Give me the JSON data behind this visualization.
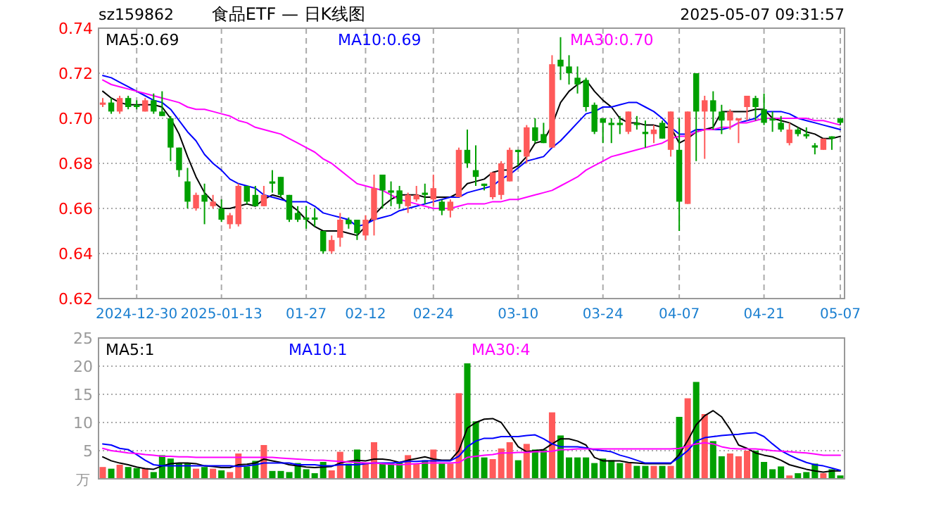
{
  "chart_data": [
    {
      "type": "candlestick",
      "title": "食品ETF — 日K线图",
      "subtitle": "sz159862",
      "annotations": [
        "2025-05-07 09:31:57"
      ],
      "categories": [
        null,
        null,
        null,
        null,
        "2024-12-30",
        null,
        null,
        null,
        null,
        null,
        null,
        null,
        null,
        null,
        "2025-01-13",
        null,
        null,
        null,
        null,
        null,
        null,
        null,
        null,
        null,
        "01-27",
        null,
        null,
        null,
        null,
        null,
        null,
        "02-12",
        null,
        null,
        null,
        null,
        null,
        null,
        null,
        "02-24",
        null,
        null,
        null,
        null,
        null,
        null,
        null,
        null,
        null,
        "03-10",
        null,
        null,
        null,
        null,
        null,
        null,
        null,
        null,
        null,
        "03-24",
        null,
        null,
        null,
        null,
        null,
        null,
        null,
        null,
        "04-07",
        null,
        null,
        null,
        null,
        null,
        null,
        null,
        null,
        null,
        "04-21",
        null,
        null,
        null,
        null,
        null,
        null,
        null,
        null,
        "05-07"
      ],
      "ohlc": [
        [
          0.706,
          0.709,
          0.705,
          0.707
        ],
        [
          0.707,
          0.709,
          0.702,
          0.703
        ],
        [
          0.703,
          0.71,
          0.702,
          0.709
        ],
        [
          0.709,
          0.71,
          0.704,
          0.705
        ],
        [
          0.706,
          0.708,
          0.704,
          0.705
        ],
        [
          0.703,
          0.709,
          0.703,
          0.708
        ],
        [
          0.708,
          0.711,
          0.702,
          0.703
        ],
        [
          0.703,
          0.712,
          0.701,
          0.701
        ],
        [
          0.7,
          0.701,
          0.681,
          0.687
        ],
        [
          0.687,
          0.687,
          0.674,
          0.677
        ],
        [
          0.672,
          0.678,
          0.66,
          0.663
        ],
        [
          0.66,
          0.667,
          0.659,
          0.666
        ],
        [
          0.666,
          0.671,
          0.653,
          0.663
        ],
        [
          0.661,
          0.666,
          0.66,
          0.663
        ],
        [
          0.66,
          0.664,
          0.654,
          0.655
        ],
        [
          0.653,
          0.658,
          0.651,
          0.657
        ],
        [
          0.653,
          0.671,
          0.652,
          0.67
        ],
        [
          0.67,
          0.67,
          0.662,
          0.663
        ],
        [
          0.666,
          0.67,
          0.661,
          0.661
        ],
        [
          0.661,
          0.67,
          0.661,
          0.666
        ],
        [
          0.672,
          0.677,
          0.667,
          0.671
        ],
        [
          0.674,
          0.674,
          0.665,
          0.666
        ],
        [
          0.666,
          0.666,
          0.654,
          0.655
        ],
        [
          0.658,
          0.661,
          0.654,
          0.655
        ],
        [
          0.656,
          0.661,
          0.651,
          0.655
        ],
        [
          0.656,
          0.66,
          0.652,
          0.655
        ],
        [
          0.65,
          0.65,
          0.64,
          0.641
        ],
        [
          0.641,
          0.648,
          0.64,
          0.646
        ],
        [
          0.647,
          0.658,
          0.643,
          0.655
        ],
        [
          0.655,
          0.656,
          0.651,
          0.653
        ],
        [
          0.655,
          0.655,
          0.646,
          0.649
        ],
        [
          0.648,
          0.657,
          0.646,
          0.655
        ],
        [
          0.655,
          0.675,
          0.648,
          0.669
        ],
        [
          0.675,
          0.675,
          0.66,
          0.668
        ],
        [
          0.668,
          0.672,
          0.661,
          0.667
        ],
        [
          0.668,
          0.67,
          0.66,
          0.662
        ],
        [
          0.661,
          0.667,
          0.658,
          0.666
        ],
        [
          0.664,
          0.67,
          0.663,
          0.666
        ],
        [
          0.667,
          0.671,
          0.662,
          0.666
        ],
        [
          0.664,
          0.675,
          0.661,
          0.669
        ],
        [
          0.663,
          0.664,
          0.657,
          0.659
        ],
        [
          0.659,
          0.664,
          0.656,
          0.663
        ],
        [
          0.665,
          0.687,
          0.665,
          0.686
        ],
        [
          0.686,
          0.695,
          0.678,
          0.68
        ],
        [
          0.677,
          0.688,
          0.67,
          0.674
        ],
        [
          0.671,
          0.671,
          0.668,
          0.67
        ],
        [
          0.665,
          0.676,
          0.664,
          0.676
        ],
        [
          0.666,
          0.681,
          0.664,
          0.68
        ],
        [
          0.672,
          0.687,
          0.672,
          0.686
        ],
        [
          0.686,
          0.686,
          0.679,
          0.685
        ],
        [
          0.683,
          0.697,
          0.68,
          0.696
        ],
        [
          0.696,
          0.7,
          0.689,
          0.69
        ],
        [
          0.693,
          0.698,
          0.689,
          0.689
        ],
        [
          0.687,
          0.728,
          0.687,
          0.724
        ],
        [
          0.726,
          0.736,
          0.717,
          0.723
        ],
        [
          0.723,
          0.728,
          0.715,
          0.72
        ],
        [
          0.718,
          0.723,
          0.711,
          0.715
        ],
        [
          0.717,
          0.718,
          0.703,
          0.705
        ],
        [
          0.706,
          0.707,
          0.693,
          0.694
        ],
        [
          0.7,
          0.7,
          0.689,
          0.698
        ],
        [
          0.698,
          0.7,
          0.689,
          0.697
        ],
        [
          0.698,
          0.701,
          0.693,
          0.697
        ],
        [
          0.694,
          0.703,
          0.693,
          0.703
        ],
        [
          0.698,
          0.701,
          0.695,
          0.697
        ],
        [
          0.694,
          0.699,
          0.687,
          0.693
        ],
        [
          0.693,
          0.697,
          0.689,
          0.695
        ],
        [
          0.698,
          0.699,
          0.691,
          0.691
        ],
        [
          0.686,
          0.703,
          0.683,
          0.703
        ],
        [
          0.686,
          0.7,
          0.65,
          0.663
        ],
        [
          0.662,
          0.703,
          0.662,
          0.703
        ],
        [
          0.72,
          0.72,
          0.681,
          0.703
        ],
        [
          0.703,
          0.71,
          0.682,
          0.708
        ],
        [
          0.708,
          0.712,
          0.695,
          0.703
        ],
        [
          0.703,
          0.706,
          0.693,
          0.699
        ],
        [
          0.699,
          0.704,
          0.695,
          0.703
        ],
        [
          0.699,
          0.7,
          0.689,
          0.7
        ],
        [
          0.705,
          0.71,
          0.699,
          0.71
        ],
        [
          0.709,
          0.71,
          0.699,
          0.705
        ],
        [
          0.704,
          0.711,
          0.697,
          0.698
        ],
        [
          0.7,
          0.703,
          0.694,
          0.699
        ],
        [
          0.698,
          0.701,
          0.694,
          0.695
        ],
        [
          0.689,
          0.698,
          0.688,
          0.695
        ],
        [
          0.695,
          0.696,
          0.692,
          0.693
        ],
        [
          0.693,
          0.696,
          0.691,
          0.692
        ],
        [
          0.688,
          0.689,
          0.684,
          0.687
        ],
        [
          0.686,
          0.691,
          0.686,
          0.691
        ],
        [
          0.692,
          0.692,
          0.686,
          0.691
        ],
        [
          0.7,
          0.7,
          0.697,
          0.698
        ]
      ],
      "colors": [
        "#ff5a5a",
        "#00a000",
        "#ff5a5a",
        "#00a000",
        "#00a000",
        "#ff5a5a",
        "#00a000",
        "#00a000",
        "#00a000",
        "#00a000",
        "#00a000",
        "#ff5a5a",
        "#00a000",
        "#ff5a5a",
        "#00a000",
        "#ff5a5a",
        "#ff5a5a",
        "#00a000",
        "#00a000",
        "#ff5a5a",
        "#00a000",
        "#00a000",
        "#00a000",
        "#00a000",
        "#00a000",
        "#00a000",
        "#00a000",
        "#ff5a5a",
        "#ff5a5a",
        "#00a000",
        "#00a000",
        "#ff5a5a",
        "#ff5a5a",
        "#00a000",
        "#00a000",
        "#00a000",
        "#ff5a5a",
        "#ff5a5a",
        "#00a000",
        "#ff5a5a",
        "#00a000",
        "#ff5a5a",
        "#ff5a5a",
        "#00a000",
        "#00a000",
        "#00a000",
        "#ff5a5a",
        "#ff5a5a",
        "#ff5a5a",
        "#00a000",
        "#ff5a5a",
        "#00a000",
        "#00a000",
        "#ff5a5a",
        "#00a000",
        "#00a000",
        "#00a000",
        "#00a000",
        "#00a000",
        "#00a000",
        "#00a000",
        "#00a000",
        "#ff5a5a",
        "#00a000",
        "#00a000",
        "#ff5a5a",
        "#00a000",
        "#ff5a5a",
        "#00a000",
        "#ff5a5a",
        "#00a000",
        "#ff5a5a",
        "#00a000",
        "#00a000",
        "#ff5a5a",
        "#ff5a5a",
        "#ff5a5a",
        "#00a000",
        "#00a000",
        "#00a000",
        "#00a000",
        "#ff5a5a",
        "#00a000",
        "#00a000",
        "#00a000",
        "#ff5a5a",
        "#00a000",
        "#00a000"
      ],
      "series": [
        {
          "type": "line",
          "name": "MA5:0.69",
          "color": "#000000",
          "values": [
            0.712,
            0.709,
            0.707,
            0.706,
            0.706,
            0.706,
            0.706,
            0.705,
            0.7,
            0.693,
            0.683,
            0.674,
            0.667,
            0.663,
            0.66,
            0.66,
            0.661,
            0.662,
            0.661,
            0.664,
            0.666,
            0.665,
            0.662,
            0.659,
            0.655,
            0.652,
            0.65,
            0.65,
            0.65,
            0.649,
            0.648,
            0.652,
            0.657,
            0.661,
            0.664,
            0.666,
            0.666,
            0.666,
            0.665,
            0.665,
            0.665,
            0.665,
            0.667,
            0.671,
            0.672,
            0.673,
            0.676,
            0.677,
            0.677,
            0.679,
            0.683,
            0.689,
            0.69,
            0.697,
            0.707,
            0.712,
            0.715,
            0.717,
            0.712,
            0.708,
            0.705,
            0.7,
            0.698,
            0.698,
            0.697,
            0.697,
            0.696,
            0.696,
            0.689,
            0.691,
            0.694,
            0.695,
            0.696,
            0.703,
            0.703,
            0.703,
            0.703,
            0.704,
            0.704,
            0.7,
            0.699,
            0.698,
            0.696,
            0.694,
            0.693,
            0.691,
            0.691,
            0.692
          ]
        },
        {
          "type": "line",
          "name": "MA10:0.69",
          "color": "#0000ff",
          "values": [
            0.719,
            0.718,
            0.716,
            0.714,
            0.712,
            0.71,
            0.708,
            0.707,
            0.704,
            0.699,
            0.694,
            0.69,
            0.684,
            0.68,
            0.677,
            0.673,
            0.671,
            0.67,
            0.669,
            0.666,
            0.665,
            0.664,
            0.663,
            0.663,
            0.663,
            0.661,
            0.658,
            0.657,
            0.656,
            0.655,
            0.652,
            0.653,
            0.655,
            0.656,
            0.657,
            0.659,
            0.66,
            0.661,
            0.662,
            0.663,
            0.664,
            0.665,
            0.665,
            0.667,
            0.668,
            0.669,
            0.67,
            0.673,
            0.675,
            0.678,
            0.681,
            0.682,
            0.683,
            0.687,
            0.69,
            0.694,
            0.698,
            0.702,
            0.703,
            0.705,
            0.705,
            0.706,
            0.707,
            0.707,
            0.705,
            0.703,
            0.7,
            0.696,
            0.693,
            0.693,
            0.695,
            0.695,
            0.695,
            0.695,
            0.696,
            0.698,
            0.699,
            0.7,
            0.703,
            0.703,
            0.703,
            0.702,
            0.7,
            0.699,
            0.698,
            0.697,
            0.696,
            0.695
          ]
        },
        {
          "type": "line",
          "name": "MA30:0.70",
          "color": "#ff00ff",
          "values": [
            0.717,
            0.715,
            0.714,
            0.713,
            0.712,
            0.711,
            0.71,
            0.709,
            0.708,
            0.707,
            0.705,
            0.704,
            0.704,
            0.703,
            0.702,
            0.701,
            0.699,
            0.698,
            0.696,
            0.695,
            0.694,
            0.693,
            0.691,
            0.689,
            0.687,
            0.685,
            0.682,
            0.68,
            0.677,
            0.674,
            0.671,
            0.67,
            0.669,
            0.668,
            0.666,
            0.664,
            0.663,
            0.662,
            0.661,
            0.66,
            0.66,
            0.66,
            0.661,
            0.662,
            0.662,
            0.662,
            0.663,
            0.663,
            0.664,
            0.664,
            0.665,
            0.666,
            0.667,
            0.668,
            0.67,
            0.672,
            0.674,
            0.677,
            0.679,
            0.681,
            0.683,
            0.684,
            0.685,
            0.686,
            0.687,
            0.688,
            0.689,
            0.691,
            0.692,
            0.692,
            0.694,
            0.695,
            0.695,
            0.696,
            0.696,
            0.698,
            0.698,
            0.699,
            0.7,
            0.7,
            0.7,
            0.7,
            0.7,
            0.7,
            0.699,
            0.699,
            0.698,
            0.697
          ]
        }
      ],
      "ylim": [
        0.62,
        0.74
      ],
      "yticks": [
        0.62,
        0.64,
        0.66,
        0.68,
        {
          "value": 0.7,
          "label": "0.70"
        },
        0.72,
        0.74
      ],
      "grid": true,
      "legend": "top"
    },
    {
      "type": "bar",
      "ylabel": "万",
      "categories": [
        null,
        null,
        null,
        null,
        null,
        null,
        null,
        null,
        null,
        null,
        null,
        null,
        null,
        null,
        null,
        null,
        null,
        null,
        null,
        null,
        null,
        null,
        null,
        null,
        null,
        null,
        null,
        null,
        null,
        null,
        null,
        null,
        null,
        null,
        null,
        null,
        null,
        null,
        null,
        null,
        null,
        null,
        null,
        null,
        null,
        null,
        null,
        null,
        null,
        null,
        null,
        null,
        null,
        null,
        null,
        null,
        null,
        null,
        null,
        null,
        null,
        null,
        null,
        null,
        null,
        null,
        null,
        null,
        null,
        null,
        null,
        null,
        null,
        null,
        null,
        null,
        null,
        null,
        null,
        null,
        null,
        null,
        null,
        null,
        null,
        null,
        null,
        null
      ],
      "series": [
        {
          "type": "bar",
          "colors": [
            "#ff5a5a",
            "#00a000",
            "#ff5a5a",
            "#00a000",
            "#00a000",
            "#ff5a5a",
            "#00a000",
            "#00a000",
            "#00a000",
            "#00a000",
            "#00a000",
            "#ff5a5a",
            "#00a000",
            "#ff5a5a",
            "#00a000",
            "#ff5a5a",
            "#ff5a5a",
            "#00a000",
            "#00a000",
            "#ff5a5a",
            "#00a000",
            "#00a000",
            "#00a000",
            "#00a000",
            "#00a000",
            "#00a000",
            "#00a000",
            "#ff5a5a",
            "#ff5a5a",
            "#00a000",
            "#00a000",
            "#ff5a5a",
            "#ff5a5a",
            "#00a000",
            "#00a000",
            "#00a000",
            "#ff5a5a",
            "#ff5a5a",
            "#00a000",
            "#ff5a5a",
            "#00a000",
            "#ff5a5a",
            "#ff5a5a",
            "#00a000",
            "#00a000",
            "#00a000",
            "#ff5a5a",
            "#ff5a5a",
            "#ff5a5a",
            "#00a000",
            "#ff5a5a",
            "#00a000",
            "#00a000",
            "#ff5a5a",
            "#00a000",
            "#00a000",
            "#00a000",
            "#00a000",
            "#00a000",
            "#00a000",
            "#00a000",
            "#00a000",
            "#ff5a5a",
            "#00a000",
            "#00a000",
            "#ff5a5a",
            "#00a000",
            "#ff5a5a",
            "#00a000",
            "#ff5a5a",
            "#00a000",
            "#ff5a5a",
            "#00a000",
            "#00a000",
            "#ff5a5a",
            "#ff5a5a",
            "#ff5a5a",
            "#00a000",
            "#00a000",
            "#00a000",
            "#00a000",
            "#ff5a5a",
            "#00a000",
            "#00a000",
            "#00a000",
            "#ff5a5a",
            "#00a000",
            "#00a000"
          ],
          "values": [
            2.1,
            1.8,
            2.5,
            2.1,
            1.9,
            1.9,
            1.2,
            4.2,
            3.6,
            2.8,
            2.8,
            1.8,
            2.1,
            1.8,
            1.5,
            1.2,
            4.5,
            2.2,
            3.2,
            6.0,
            1.4,
            1.4,
            1.2,
            2.8,
            1.7,
            1.0,
            3.0,
            1.5,
            4.8,
            2.7,
            5.2,
            2.7,
            6.5,
            2.7,
            2.7,
            3.0,
            4.2,
            2.7,
            3.3,
            5.2,
            2.7,
            2.7,
            15.2,
            20.5,
            10.2,
            3.8,
            3.5,
            5.4,
            6.5,
            3.3,
            6.2,
            5.2,
            5.2,
            11.8,
            7.7,
            3.8,
            3.8,
            3.8,
            2.8,
            3.6,
            3.3,
            2.8,
            2.8,
            2.3,
            2.3,
            2.3,
            2.3,
            2.3,
            11.0,
            14.3,
            17.2,
            11.5,
            6.7,
            4.0,
            4.5,
            4.0,
            5.0,
            5.0,
            3.0,
            1.7,
            2.2,
            0.6,
            1.0,
            1.2,
            2.7,
            1.0,
            1.7,
            0.6
          ]
        },
        {
          "type": "line",
          "name": "MA5:1",
          "color": "#000000",
          "values": [
            3.9,
            3.2,
            2.8,
            2.5,
            2.1,
            1.8,
            1.7,
            2.3,
            2.7,
            2.8,
            2.8,
            2.7,
            2.3,
            2.2,
            2.0,
            2.0,
            2.5,
            2.6,
            2.8,
            3.5,
            3.2,
            2.9,
            2.5,
            2.3,
            2.1,
            2.0,
            2.1,
            2.2,
            2.8,
            3.1,
            3.3,
            3.2,
            3.5,
            3.5,
            3.3,
            2.9,
            3.3,
            3.6,
            3.9,
            3.5,
            3.3,
            3.3,
            5.0,
            9.0,
            10.0,
            10.6,
            10.7,
            10.0,
            7.9,
            5.7,
            4.8,
            5.0,
            5.2,
            6.2,
            7.1,
            7.1,
            6.7,
            6.0,
            3.8,
            3.2,
            3.2,
            3.2,
            2.9,
            2.8,
            2.7,
            2.7,
            2.7,
            2.7,
            4.3,
            6.8,
            9.6,
            11.2,
            12.1,
            11.0,
            8.8,
            6.0,
            5.4,
            4.6,
            4.2,
            3.9,
            3.3,
            2.5,
            2.1,
            1.7,
            1.4,
            1.2,
            1.4,
            1.4
          ]
        },
        {
          "type": "line",
          "name": "MA10:1",
          "color": "#0000ff",
          "values": [
            6.2,
            6.0,
            5.4,
            5.2,
            4.3,
            3.3,
            2.5,
            2.3,
            2.3,
            2.3,
            2.3,
            2.3,
            2.3,
            2.3,
            2.3,
            2.3,
            2.2,
            2.3,
            2.5,
            2.8,
            2.8,
            2.8,
            2.8,
            2.5,
            2.5,
            2.5,
            2.3,
            2.3,
            2.5,
            2.5,
            2.5,
            2.7,
            2.8,
            2.8,
            2.8,
            2.9,
            3.1,
            3.1,
            3.2,
            3.2,
            3.2,
            3.2,
            4.0,
            5.7,
            6.7,
            7.2,
            7.2,
            7.5,
            7.5,
            7.5,
            7.7,
            7.8,
            7.1,
            6.2,
            5.7,
            5.7,
            5.7,
            5.5,
            5.2,
            5.0,
            4.8,
            4.2,
            3.8,
            3.3,
            2.8,
            2.8,
            2.8,
            2.8,
            3.8,
            5.0,
            6.7,
            7.3,
            7.5,
            7.7,
            7.8,
            7.9,
            8.1,
            8.2,
            7.5,
            6.2,
            5.0,
            4.2,
            3.5,
            2.9,
            2.5,
            2.3,
            1.9,
            1.5
          ]
        },
        {
          "type": "line",
          "name": "MA30:4",
          "color": "#ff00ff",
          "values": [
            5.4,
            5.0,
            4.8,
            4.6,
            4.5,
            4.3,
            4.2,
            4.0,
            4.0,
            3.9,
            3.9,
            3.8,
            3.8,
            3.8,
            3.8,
            3.8,
            3.8,
            3.8,
            3.8,
            3.8,
            3.8,
            3.7,
            3.6,
            3.5,
            3.4,
            3.3,
            3.3,
            3.2,
            3.1,
            3.0,
            2.9,
            2.8,
            2.8,
            2.7,
            2.6,
            2.5,
            2.6,
            2.7,
            2.8,
            2.8,
            2.8,
            2.8,
            2.9,
            3.8,
            4.0,
            4.2,
            4.3,
            4.6,
            4.6,
            4.7,
            4.7,
            4.8,
            4.8,
            4.9,
            5.2,
            5.2,
            5.3,
            5.3,
            5.3,
            5.3,
            5.3,
            5.3,
            5.3,
            5.3,
            5.3,
            5.3,
            5.3,
            5.3,
            5.4,
            5.8,
            6.2,
            6.4,
            6.2,
            5.7,
            5.4,
            5.3,
            5.3,
            5.3,
            5.2,
            5.0,
            4.9,
            4.8,
            4.7,
            4.6,
            4.4,
            4.2,
            4.2,
            4.2
          ]
        }
      ],
      "ylim": [
        0,
        25
      ],
      "yticks": [
        5,
        10,
        15,
        20,
        25
      ],
      "grid": "y",
      "legend": "top",
      "tick_labels": "y"
    }
  ]
}
